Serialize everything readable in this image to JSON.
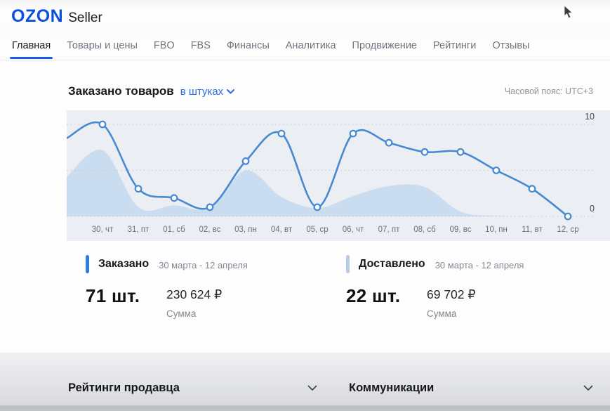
{
  "header": {
    "logo_primary": "OZON",
    "logo_secondary": "Seller"
  },
  "nav": {
    "items": [
      {
        "label": "Главная",
        "active": true
      },
      {
        "label": "Товары и цены",
        "active": false
      },
      {
        "label": "FBO",
        "active": false
      },
      {
        "label": "FBS",
        "active": false
      },
      {
        "label": "Финансы",
        "active": false
      },
      {
        "label": "Аналитика",
        "active": false
      },
      {
        "label": "Продвижение",
        "active": false
      },
      {
        "label": "Рейтинги",
        "active": false
      },
      {
        "label": "Отзывы",
        "active": false
      }
    ]
  },
  "chart_section": {
    "title": "Заказано товаров",
    "unit_selector": "в штуках",
    "timezone": "Часовой пояс: UTC+3"
  },
  "chart_data": {
    "type": "line",
    "title": "Заказано товаров",
    "unit": "в штуках",
    "categories": [
      "30, чт",
      "31, пт",
      "01, сб",
      "02, вс",
      "03, пн",
      "04, вт",
      "05, ср",
      "06, чт",
      "07, пт",
      "08, сб",
      "09, вс",
      "10, пн",
      "11, вт",
      "12, ср"
    ],
    "ylim": [
      0,
      10
    ],
    "gridline_values": [
      10,
      5,
      0
    ],
    "ytick_labels": [
      {
        "value": 10,
        "label": "10"
      },
      {
        "value": 0,
        "label": "0"
      }
    ],
    "legend": "none",
    "grid": "dotted-horizontal",
    "series": [
      {
        "name": "Заказано",
        "type": "line",
        "color": "#458ad2",
        "lead_in": 8.5,
        "values": [
          10,
          3,
          2,
          1,
          6,
          9,
          1,
          9,
          8,
          7,
          7,
          5,
          3,
          0
        ]
      },
      {
        "name": "",
        "type": "area",
        "color": "#c7d9f0",
        "opacity": 0.9,
        "lead_in": 4.3,
        "values": [
          7.2,
          1,
          1.2,
          0.9,
          5,
          2.1,
          0.9,
          2.2,
          3.3,
          3.2,
          0.5,
          0.05,
          0,
          0
        ]
      }
    ]
  },
  "stats": {
    "ordered": {
      "label": "Заказано",
      "period": "30 марта - 12 апреля",
      "count": "71 шт.",
      "amount": "230 624 ₽",
      "amount_label": "Сумма",
      "accent": "#2e7de5"
    },
    "delivered": {
      "label": "Доставлено",
      "period": "30 марта - 12 апреля",
      "count": "22 шт.",
      "amount": "69 702 ₽",
      "amount_label": "Сумма",
      "accent": "#b5cbe7"
    }
  },
  "sections": {
    "seller_ratings": "Рейтинги продавца",
    "communications": "Коммуникации"
  }
}
